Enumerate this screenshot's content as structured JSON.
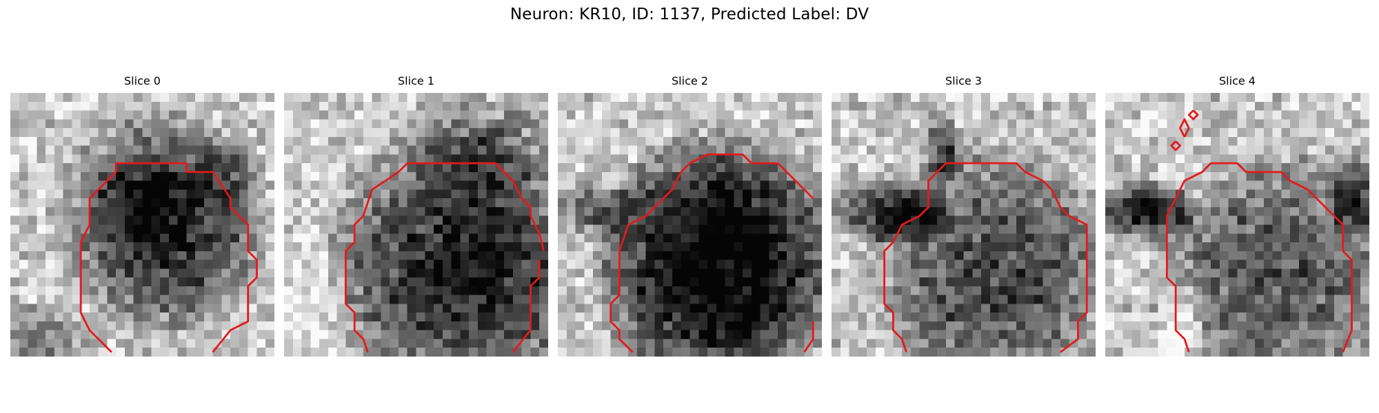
{
  "figure": {
    "title": "Neuron: KR10, ID: 1137, Predicted Label: DV"
  },
  "panels": [
    {
      "title": "Slice 0"
    },
    {
      "title": "Slice 1"
    },
    {
      "title": "Slice 2"
    },
    {
      "title": "Slice 3"
    },
    {
      "title": "Slice 4"
    }
  ],
  "colors": {
    "contour": "#e41a1c",
    "colormap": "grayscale"
  }
}
